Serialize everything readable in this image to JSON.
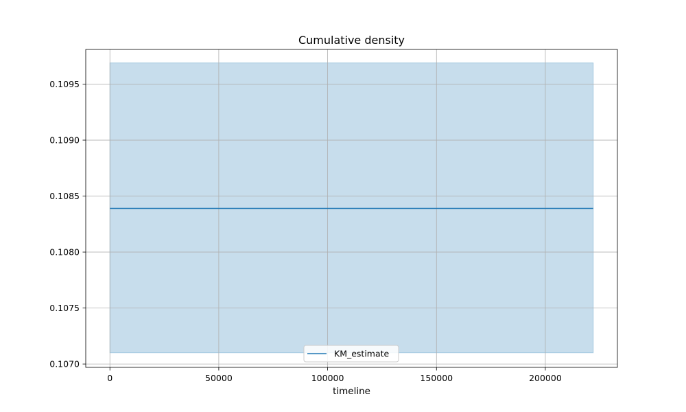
{
  "chart_data": {
    "type": "line",
    "title": "Cumulative density",
    "xlabel": "timeline",
    "ylabel": "",
    "xlim": [
      -11100,
      233100
    ],
    "ylim": [
      0.10697,
      0.10981
    ],
    "x_ticks": [
      0,
      50000,
      100000,
      150000,
      200000
    ],
    "x_tick_labels": [
      "0",
      "50000",
      "100000",
      "150000",
      "200000"
    ],
    "y_ticks": [
      0.107,
      0.1075,
      0.108,
      0.1085,
      0.109,
      0.1095
    ],
    "y_tick_labels": [
      "0.1070",
      "0.1075",
      "0.1080",
      "0.1085",
      "0.1090",
      "0.1095"
    ],
    "grid": true,
    "legend": {
      "placement": "lower center",
      "entries": [
        "KM_estimate"
      ]
    },
    "series": [
      {
        "name": "KM_estimate",
        "color": "#1f77b4",
        "x": [
          0,
          222000
        ],
        "y": [
          0.10839,
          0.10839
        ],
        "ci_lower": [
          0.1071,
          0.1071
        ],
        "ci_upper": [
          0.10969,
          0.10969
        ],
        "ci_color": "#1f77b4",
        "ci_alpha": 0.25
      }
    ]
  }
}
